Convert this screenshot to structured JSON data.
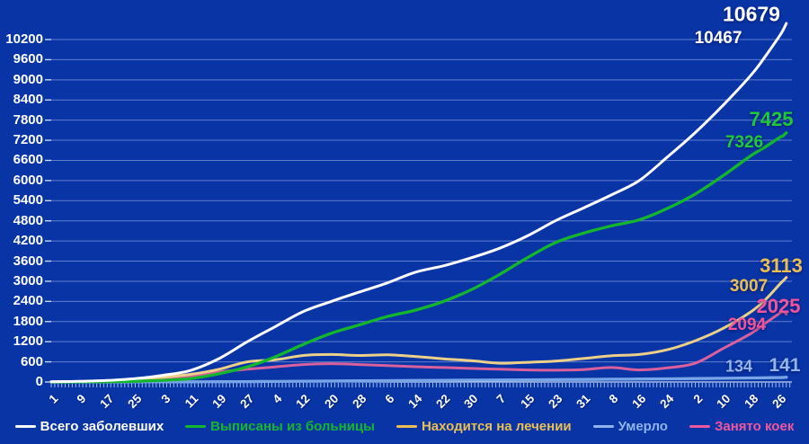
{
  "chart_data": {
    "type": "line",
    "title": "",
    "background_color": "#0834a6",
    "grid": true,
    "legend_position": "bottom",
    "y_axis": {
      "min": 0,
      "max": 10200,
      "step": 600,
      "tick_labels": [
        "0",
        "600",
        "1200",
        "1800",
        "2400",
        "3000",
        "3600",
        "4200",
        "4800",
        "5400",
        "6000",
        "6600",
        "7200",
        "7800",
        "8400",
        "9000",
        "9600",
        "10200"
      ]
    },
    "x_axis": {
      "tick_labels": [
        "1",
        "9",
        "17",
        "25",
        "3",
        "11",
        "19",
        "27",
        "4",
        "12",
        "20",
        "28",
        "6",
        "14",
        "22",
        "30",
        "7",
        "15",
        "23",
        "31",
        "8",
        "16",
        "24",
        "2",
        "10",
        "18",
        "26"
      ],
      "label_every_n_days": 8,
      "total_days": 211,
      "minor_ticks": "daily"
    },
    "sample_days": [
      0,
      8,
      16,
      24,
      32,
      40,
      48,
      56,
      64,
      72,
      80,
      88,
      96,
      104,
      112,
      120,
      128,
      136,
      144,
      152,
      160,
      168,
      176,
      184,
      192,
      200,
      204,
      208,
      209,
      210
    ],
    "series": [
      {
        "name": "Всего заболевших",
        "line_color": "#ffffff",
        "label_color": "#ffffff",
        "final_label": "10679",
        "prev_label": "10467",
        "values": [
          5,
          20,
          45,
          100,
          200,
          350,
          700,
          1200,
          1650,
          2100,
          2400,
          2680,
          2950,
          3270,
          3460,
          3700,
          3980,
          4350,
          4800,
          5180,
          5570,
          6000,
          6700,
          7430,
          8250,
          9150,
          9700,
          10300,
          10467,
          10679
        ]
      },
      {
        "name": "Выписаны из больницы",
        "line_color": "#14b62e",
        "label_color": "#1fca3a",
        "final_label": "7425",
        "prev_label": "7326",
        "values": [
          0,
          2,
          8,
          22,
          50,
          105,
          250,
          450,
          750,
          1120,
          1450,
          1700,
          1950,
          2140,
          2400,
          2750,
          3200,
          3700,
          4150,
          4430,
          4650,
          4830,
          5170,
          5600,
          6150,
          6750,
          7000,
          7280,
          7326,
          7425
        ]
      },
      {
        "name": "Находится на лечении",
        "line_color": "#ecd089",
        "label_color": "#e9bf55",
        "final_label": "3113",
        "prev_label": "3007",
        "values": [
          5,
          16,
          34,
          70,
          140,
          230,
          380,
          600,
          660,
          790,
          820,
          790,
          810,
          760,
          690,
          635,
          560,
          585,
          620,
          700,
          780,
          820,
          960,
          1230,
          1600,
          2100,
          2450,
          2900,
          3007,
          3113
        ]
      },
      {
        "name": "Умерло",
        "line_color": "#77a5e8",
        "label_color": "#93b5ea",
        "final_label": "141",
        "prev_label": "134",
        "values": [
          0,
          0,
          1,
          2,
          3,
          5,
          8,
          12,
          17,
          23,
          29,
          34,
          40,
          45,
          50,
          55,
          60,
          65,
          70,
          76,
          82,
          88,
          95,
          102,
          110,
          120,
          126,
          132,
          134,
          141
        ]
      },
      {
        "name": "Занято коек",
        "line_color": "#d8609c",
        "label_color": "#f2549c",
        "final_label": "2025",
        "prev_label": "2094",
        "values": [
          4,
          14,
          28,
          55,
          100,
          180,
          300,
          380,
          450,
          520,
          545,
          520,
          490,
          455,
          430,
          405,
          380,
          360,
          350,
          370,
          430,
          360,
          420,
          560,
          1000,
          1450,
          1750,
          2040,
          2094,
          2025
        ]
      }
    ]
  },
  "legend": {
    "items": [
      {
        "label": "Всего заболевших",
        "color": "#ffffff"
      },
      {
        "label": "Выписаны из больницы",
        "color": "#14b62e"
      },
      {
        "label": "Находится на лечении",
        "color": "#e9bf55"
      },
      {
        "label": "Умерло",
        "color": "#8fb3ea"
      },
      {
        "label": "Занято коек",
        "color": "#ef57a0"
      }
    ]
  }
}
